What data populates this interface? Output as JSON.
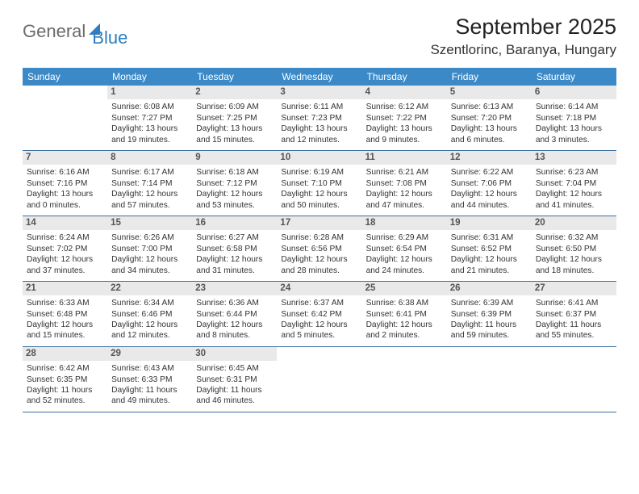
{
  "logo": {
    "text1": "General",
    "text2": "Blue"
  },
  "title": "September 2025",
  "location": "Szentlorinc, Baranya, Hungary",
  "header_bg": "#3b89c7",
  "day_names": [
    "Sunday",
    "Monday",
    "Tuesday",
    "Wednesday",
    "Thursday",
    "Friday",
    "Saturday"
  ],
  "weeks": [
    [
      {
        "empty": true
      },
      {
        "d": "1",
        "sr": "Sunrise: 6:08 AM",
        "ss": "Sunset: 7:27 PM",
        "dl1": "Daylight: 13 hours",
        "dl2": "and 19 minutes."
      },
      {
        "d": "2",
        "sr": "Sunrise: 6:09 AM",
        "ss": "Sunset: 7:25 PM",
        "dl1": "Daylight: 13 hours",
        "dl2": "and 15 minutes."
      },
      {
        "d": "3",
        "sr": "Sunrise: 6:11 AM",
        "ss": "Sunset: 7:23 PM",
        "dl1": "Daylight: 13 hours",
        "dl2": "and 12 minutes."
      },
      {
        "d": "4",
        "sr": "Sunrise: 6:12 AM",
        "ss": "Sunset: 7:22 PM",
        "dl1": "Daylight: 13 hours",
        "dl2": "and 9 minutes."
      },
      {
        "d": "5",
        "sr": "Sunrise: 6:13 AM",
        "ss": "Sunset: 7:20 PM",
        "dl1": "Daylight: 13 hours",
        "dl2": "and 6 minutes."
      },
      {
        "d": "6",
        "sr": "Sunrise: 6:14 AM",
        "ss": "Sunset: 7:18 PM",
        "dl1": "Daylight: 13 hours",
        "dl2": "and 3 minutes."
      }
    ],
    [
      {
        "d": "7",
        "sr": "Sunrise: 6:16 AM",
        "ss": "Sunset: 7:16 PM",
        "dl1": "Daylight: 13 hours",
        "dl2": "and 0 minutes."
      },
      {
        "d": "8",
        "sr": "Sunrise: 6:17 AM",
        "ss": "Sunset: 7:14 PM",
        "dl1": "Daylight: 12 hours",
        "dl2": "and 57 minutes."
      },
      {
        "d": "9",
        "sr": "Sunrise: 6:18 AM",
        "ss": "Sunset: 7:12 PM",
        "dl1": "Daylight: 12 hours",
        "dl2": "and 53 minutes."
      },
      {
        "d": "10",
        "sr": "Sunrise: 6:19 AM",
        "ss": "Sunset: 7:10 PM",
        "dl1": "Daylight: 12 hours",
        "dl2": "and 50 minutes."
      },
      {
        "d": "11",
        "sr": "Sunrise: 6:21 AM",
        "ss": "Sunset: 7:08 PM",
        "dl1": "Daylight: 12 hours",
        "dl2": "and 47 minutes."
      },
      {
        "d": "12",
        "sr": "Sunrise: 6:22 AM",
        "ss": "Sunset: 7:06 PM",
        "dl1": "Daylight: 12 hours",
        "dl2": "and 44 minutes."
      },
      {
        "d": "13",
        "sr": "Sunrise: 6:23 AM",
        "ss": "Sunset: 7:04 PM",
        "dl1": "Daylight: 12 hours",
        "dl2": "and 41 minutes."
      }
    ],
    [
      {
        "d": "14",
        "sr": "Sunrise: 6:24 AM",
        "ss": "Sunset: 7:02 PM",
        "dl1": "Daylight: 12 hours",
        "dl2": "and 37 minutes."
      },
      {
        "d": "15",
        "sr": "Sunrise: 6:26 AM",
        "ss": "Sunset: 7:00 PM",
        "dl1": "Daylight: 12 hours",
        "dl2": "and 34 minutes."
      },
      {
        "d": "16",
        "sr": "Sunrise: 6:27 AM",
        "ss": "Sunset: 6:58 PM",
        "dl1": "Daylight: 12 hours",
        "dl2": "and 31 minutes."
      },
      {
        "d": "17",
        "sr": "Sunrise: 6:28 AM",
        "ss": "Sunset: 6:56 PM",
        "dl1": "Daylight: 12 hours",
        "dl2": "and 28 minutes."
      },
      {
        "d": "18",
        "sr": "Sunrise: 6:29 AM",
        "ss": "Sunset: 6:54 PM",
        "dl1": "Daylight: 12 hours",
        "dl2": "and 24 minutes."
      },
      {
        "d": "19",
        "sr": "Sunrise: 6:31 AM",
        "ss": "Sunset: 6:52 PM",
        "dl1": "Daylight: 12 hours",
        "dl2": "and 21 minutes."
      },
      {
        "d": "20",
        "sr": "Sunrise: 6:32 AM",
        "ss": "Sunset: 6:50 PM",
        "dl1": "Daylight: 12 hours",
        "dl2": "and 18 minutes."
      }
    ],
    [
      {
        "d": "21",
        "sr": "Sunrise: 6:33 AM",
        "ss": "Sunset: 6:48 PM",
        "dl1": "Daylight: 12 hours",
        "dl2": "and 15 minutes."
      },
      {
        "d": "22",
        "sr": "Sunrise: 6:34 AM",
        "ss": "Sunset: 6:46 PM",
        "dl1": "Daylight: 12 hours",
        "dl2": "and 12 minutes."
      },
      {
        "d": "23",
        "sr": "Sunrise: 6:36 AM",
        "ss": "Sunset: 6:44 PM",
        "dl1": "Daylight: 12 hours",
        "dl2": "and 8 minutes."
      },
      {
        "d": "24",
        "sr": "Sunrise: 6:37 AM",
        "ss": "Sunset: 6:42 PM",
        "dl1": "Daylight: 12 hours",
        "dl2": "and 5 minutes."
      },
      {
        "d": "25",
        "sr": "Sunrise: 6:38 AM",
        "ss": "Sunset: 6:41 PM",
        "dl1": "Daylight: 12 hours",
        "dl2": "and 2 minutes."
      },
      {
        "d": "26",
        "sr": "Sunrise: 6:39 AM",
        "ss": "Sunset: 6:39 PM",
        "dl1": "Daylight: 11 hours",
        "dl2": "and 59 minutes."
      },
      {
        "d": "27",
        "sr": "Sunrise: 6:41 AM",
        "ss": "Sunset: 6:37 PM",
        "dl1": "Daylight: 11 hours",
        "dl2": "and 55 minutes."
      }
    ],
    [
      {
        "d": "28",
        "sr": "Sunrise: 6:42 AM",
        "ss": "Sunset: 6:35 PM",
        "dl1": "Daylight: 11 hours",
        "dl2": "and 52 minutes."
      },
      {
        "d": "29",
        "sr": "Sunrise: 6:43 AM",
        "ss": "Sunset: 6:33 PM",
        "dl1": "Daylight: 11 hours",
        "dl2": "and 49 minutes."
      },
      {
        "d": "30",
        "sr": "Sunrise: 6:45 AM",
        "ss": "Sunset: 6:31 PM",
        "dl1": "Daylight: 11 hours",
        "dl2": "and 46 minutes."
      },
      {
        "empty": true
      },
      {
        "empty": true
      },
      {
        "empty": true
      },
      {
        "empty": true
      }
    ]
  ]
}
